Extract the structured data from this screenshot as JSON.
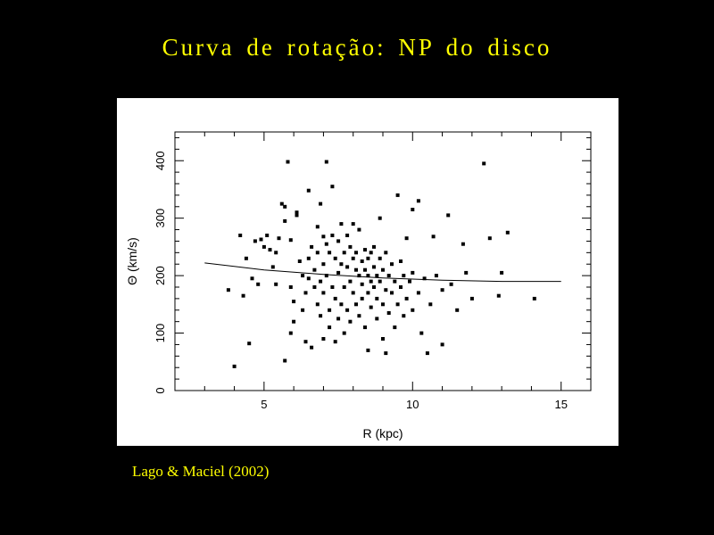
{
  "slide": {
    "title": "Curva de rotação: NP do disco",
    "citation": "Lago & Maciel  (2002)",
    "title_color": "#ffff00",
    "background_color": "#000000"
  },
  "chart_data": {
    "type": "scatter",
    "title": "",
    "xlabel": "R (kpc)",
    "ylabel": "Θ (km/s)",
    "xlim": [
      2,
      16
    ],
    "ylim": [
      0,
      450
    ],
    "xticks": [
      5,
      10,
      15
    ],
    "yticks": [
      0,
      100,
      200,
      300,
      400
    ],
    "grid": false,
    "point_color": "#000000",
    "fit_line": {
      "x": [
        3,
        5,
        7,
        9,
        11,
        13,
        15
      ],
      "y": [
        222,
        210,
        202,
        196,
        192,
        190,
        190
      ]
    },
    "points": [
      [
        3.8,
        175
      ],
      [
        4.0,
        42
      ],
      [
        4.2,
        270
      ],
      [
        4.3,
        165
      ],
      [
        4.4,
        230
      ],
      [
        4.5,
        82
      ],
      [
        4.6,
        195
      ],
      [
        4.7,
        260
      ],
      [
        4.8,
        185
      ],
      [
        4.9,
        263
      ],
      [
        5.0,
        250
      ],
      [
        5.1,
        270
      ],
      [
        5.2,
        245
      ],
      [
        5.3,
        215
      ],
      [
        5.4,
        240
      ],
      [
        5.4,
        185
      ],
      [
        5.5,
        265
      ],
      [
        5.6,
        325
      ],
      [
        5.7,
        320
      ],
      [
        5.7,
        295
      ],
      [
        5.8,
        398
      ],
      [
        5.9,
        262
      ],
      [
        5.9,
        180
      ],
      [
        5.7,
        52
      ],
      [
        5.9,
        100
      ],
      [
        6.0,
        155
      ],
      [
        6.0,
        120
      ],
      [
        6.1,
        305
      ],
      [
        6.1,
        310
      ],
      [
        6.2,
        225
      ],
      [
        6.3,
        140
      ],
      [
        6.3,
        200
      ],
      [
        6.4,
        85
      ],
      [
        6.4,
        170
      ],
      [
        6.5,
        348
      ],
      [
        6.5,
        230
      ],
      [
        6.5,
        195
      ],
      [
        6.6,
        75
      ],
      [
        6.6,
        250
      ],
      [
        6.7,
        180
      ],
      [
        6.7,
        210
      ],
      [
        6.8,
        285
      ],
      [
        6.8,
        150
      ],
      [
        6.8,
        240
      ],
      [
        6.9,
        325
      ],
      [
        6.9,
        130
      ],
      [
        6.9,
        190
      ],
      [
        7.0,
        268
      ],
      [
        7.0,
        220
      ],
      [
        7.0,
        170
      ],
      [
        7.0,
        90
      ],
      [
        7.1,
        398
      ],
      [
        7.1,
        255
      ],
      [
        7.1,
        200
      ],
      [
        7.2,
        140
      ],
      [
        7.2,
        240
      ],
      [
        7.2,
        110
      ],
      [
        7.3,
        355
      ],
      [
        7.3,
        270
      ],
      [
        7.3,
        180
      ],
      [
        7.4,
        230
      ],
      [
        7.4,
        160
      ],
      [
        7.4,
        85
      ],
      [
        7.5,
        260
      ],
      [
        7.5,
        205
      ],
      [
        7.5,
        125
      ],
      [
        7.6,
        290
      ],
      [
        7.6,
        220
      ],
      [
        7.6,
        150
      ],
      [
        7.7,
        240
      ],
      [
        7.7,
        180
      ],
      [
        7.7,
        100
      ],
      [
        7.8,
        270
      ],
      [
        7.8,
        215
      ],
      [
        7.8,
        140
      ],
      [
        7.9,
        250
      ],
      [
        7.9,
        190
      ],
      [
        7.9,
        120
      ],
      [
        8.0,
        230
      ],
      [
        8.0,
        170
      ],
      [
        8.0,
        290
      ],
      [
        8.1,
        210
      ],
      [
        8.1,
        150
      ],
      [
        8.1,
        240
      ],
      [
        8.2,
        200
      ],
      [
        8.2,
        280
      ],
      [
        8.2,
        130
      ],
      [
        8.3,
        225
      ],
      [
        8.3,
        185
      ],
      [
        8.3,
        160
      ],
      [
        8.4,
        245
      ],
      [
        8.4,
        210
      ],
      [
        8.4,
        110
      ],
      [
        8.5,
        200
      ],
      [
        8.5,
        230
      ],
      [
        8.5,
        170
      ],
      [
        8.5,
        70
      ],
      [
        8.6,
        190
      ],
      [
        8.6,
        240
      ],
      [
        8.6,
        145
      ],
      [
        8.7,
        215
      ],
      [
        8.7,
        180
      ],
      [
        8.7,
        250
      ],
      [
        8.8,
        200
      ],
      [
        8.8,
        160
      ],
      [
        8.8,
        125
      ],
      [
        8.9,
        230
      ],
      [
        8.9,
        300
      ],
      [
        8.9,
        190
      ],
      [
        9.0,
        210
      ],
      [
        9.0,
        150
      ],
      [
        9.0,
        90
      ],
      [
        9.1,
        240
      ],
      [
        9.1,
        175
      ],
      [
        9.1,
        65
      ],
      [
        9.2,
        200
      ],
      [
        9.2,
        135
      ],
      [
        9.3,
        220
      ],
      [
        9.3,
        170
      ],
      [
        9.4,
        190
      ],
      [
        9.4,
        110
      ],
      [
        9.5,
        340
      ],
      [
        9.5,
        150
      ],
      [
        9.6,
        225
      ],
      [
        9.6,
        180
      ],
      [
        9.7,
        200
      ],
      [
        9.7,
        130
      ],
      [
        9.8,
        265
      ],
      [
        9.8,
        160
      ],
      [
        9.9,
        190
      ],
      [
        10.0,
        315
      ],
      [
        10.0,
        205
      ],
      [
        10.0,
        140
      ],
      [
        10.2,
        330
      ],
      [
        10.2,
        170
      ],
      [
        10.3,
        100
      ],
      [
        10.4,
        195
      ],
      [
        10.5,
        65
      ],
      [
        10.6,
        150
      ],
      [
        10.7,
        268
      ],
      [
        10.8,
        200
      ],
      [
        11.0,
        175
      ],
      [
        11.0,
        80
      ],
      [
        11.2,
        305
      ],
      [
        11.3,
        185
      ],
      [
        11.5,
        140
      ],
      [
        11.7,
        255
      ],
      [
        11.8,
        205
      ],
      [
        12.0,
        160
      ],
      [
        12.4,
        395
      ],
      [
        12.6,
        265
      ],
      [
        12.9,
        165
      ],
      [
        13.0,
        205
      ],
      [
        13.2,
        275
      ],
      [
        14.1,
        160
      ]
    ]
  }
}
